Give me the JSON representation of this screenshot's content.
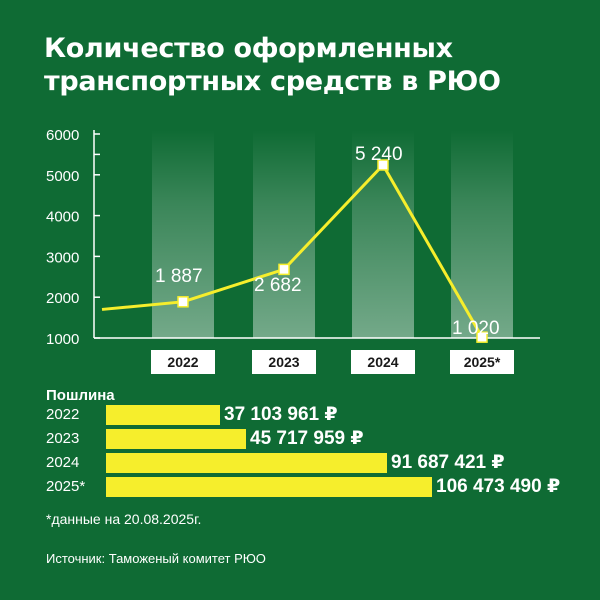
{
  "title": {
    "line1": "Количество оформленных",
    "line2": "транспортных средств в РЮО"
  },
  "chart_data": {
    "type": "line",
    "categories": [
      "2022",
      "2023",
      "2024",
      "2025*"
    ],
    "values": [
      1887,
      2682,
      5240,
      1020
    ],
    "value_labels": [
      "1 887",
      "2 682",
      "5 240",
      "1 020"
    ],
    "start_value": 1700,
    "yticks": [
      "6000",
      "5000",
      "4000",
      "3000",
      "2000",
      "1000"
    ],
    "ylim": [
      800,
      6000
    ],
    "line_color": "#f6ee2c"
  },
  "duty": {
    "heading": "Пошлина",
    "rows": [
      {
        "year": "2022",
        "value": 37103961,
        "label": "37 103 961 ₽"
      },
      {
        "year": "2023",
        "value": 45717959,
        "label": "45 717 959 ₽"
      },
      {
        "year": "2024",
        "value": 91687421,
        "label": "91 687 421 ₽"
      },
      {
        "year": "2025*",
        "value": 106473490,
        "label": "106 473 490 ₽"
      }
    ],
    "bar_color": "#f6ee2c"
  },
  "footnote": "*данные на 20.08.2025г.",
  "source": "Источник: Таможеный комитет РЮО"
}
